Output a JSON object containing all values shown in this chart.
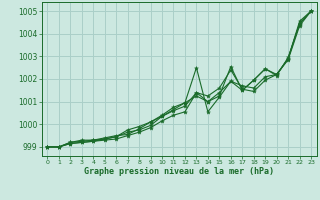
{
  "bg_color": "#cce8e0",
  "grid_color": "#aacfc8",
  "line_color": "#1a6b2a",
  "xlabel": "Graphe pression niveau de la mer (hPa)",
  "ylim": [
    998.6,
    1005.4
  ],
  "yticks": [
    999,
    1000,
    1001,
    1002,
    1003,
    1004,
    1005
  ],
  "xlim": [
    -0.5,
    23.5
  ],
  "xticks": [
    0,
    1,
    2,
    3,
    4,
    5,
    6,
    7,
    8,
    9,
    10,
    11,
    12,
    13,
    14,
    15,
    16,
    17,
    18,
    19,
    20,
    21,
    22,
    23
  ],
  "series": [
    [
      999.0,
      999.0,
      999.15,
      999.2,
      999.25,
      999.3,
      999.35,
      999.5,
      999.65,
      999.85,
      1000.15,
      1000.4,
      1000.55,
      1001.4,
      1001.25,
      1001.6,
      1002.4,
      1001.55,
      1001.45,
      1001.95,
      1002.2,
      1002.9,
      1004.45,
      1005.0
    ],
    [
      999.0,
      999.0,
      999.15,
      999.2,
      999.25,
      999.35,
      999.45,
      999.65,
      999.75,
      999.95,
      1000.35,
      1000.6,
      1000.8,
      1001.4,
      1001.0,
      1001.4,
      1001.9,
      1001.7,
      1001.6,
      1002.1,
      1002.2,
      1002.9,
      1004.55,
      1005.0
    ],
    [
      999.0,
      999.0,
      999.2,
      999.3,
      999.3,
      999.4,
      999.5,
      999.55,
      999.8,
      1000.1,
      1000.4,
      1000.75,
      1000.95,
      1002.5,
      1000.55,
      1001.2,
      1001.9,
      1001.5,
      1001.95,
      1002.45,
      1002.2,
      1002.85,
      1004.35,
      1005.0
    ],
    [
      999.0,
      999.0,
      999.2,
      999.25,
      999.3,
      999.35,
      999.45,
      999.75,
      999.9,
      1000.1,
      1000.35,
      1000.65,
      1000.95,
      1001.25,
      1001.0,
      1001.25,
      1002.55,
      1001.5,
      1001.95,
      1002.45,
      1002.15,
      1002.95,
      1004.45,
      1005.0
    ]
  ]
}
